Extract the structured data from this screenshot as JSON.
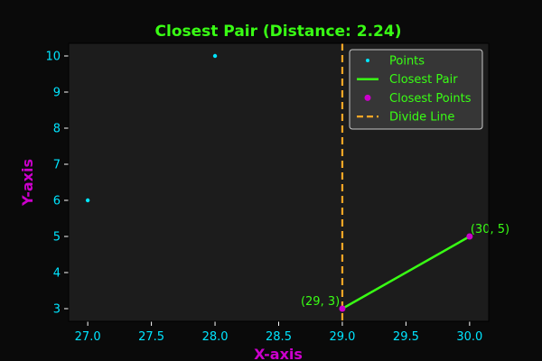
{
  "chart_data": {
    "type": "scatter",
    "title": "Closest Pair (Distance: 2.24)",
    "xlabel": "X-axis",
    "ylabel": "Y-axis",
    "xlim": [
      26.85,
      30.15
    ],
    "ylim": [
      2.65,
      10.35
    ],
    "xticks": [
      "27.0",
      "27.5",
      "28.0",
      "28.5",
      "29.0",
      "29.5",
      "30.0"
    ],
    "yticks": [
      "3",
      "4",
      "5",
      "6",
      "7",
      "8",
      "9",
      "10"
    ],
    "points": [
      {
        "x": 27,
        "y": 6
      },
      {
        "x": 28,
        "y": 10
      },
      {
        "x": 29,
        "y": 3
      },
      {
        "x": 30,
        "y": 5
      }
    ],
    "closest_pair": [
      {
        "x": 29,
        "y": 3,
        "label": "(29, 3)"
      },
      {
        "x": 30,
        "y": 5,
        "label": "(30, 5)"
      }
    ],
    "divide_line_x": 29,
    "legend": {
      "placement": "upper right",
      "entries": [
        {
          "name": "Points",
          "kind": "point",
          "color": "#00e5ff"
        },
        {
          "name": "Closest Pair",
          "kind": "line",
          "color": "#39ff14"
        },
        {
          "name": "Closest Points",
          "kind": "dot",
          "color": "#cc00cc"
        },
        {
          "name": "Divide Line",
          "kind": "dashed",
          "color": "#ffa726"
        }
      ]
    },
    "grid": false,
    "colors": {
      "figure_bg": "#0a0a0a",
      "axes_bg": "#1c1c1c",
      "title": "#39ff14",
      "axis_label": "#cc00cc",
      "tick": "#00e5ff",
      "annotation": "#39ff14",
      "legend_text": "#39ff14",
      "legend_bg": "#3a3a3a"
    }
  }
}
